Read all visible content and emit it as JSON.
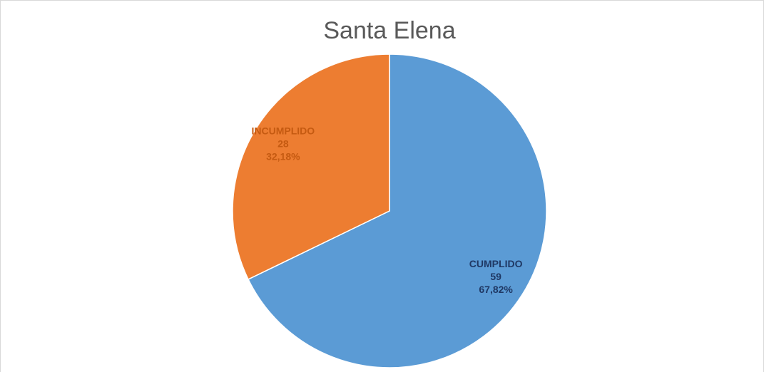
{
  "chart_data": {
    "type": "pie",
    "title": "Santa Elena",
    "categories": [
      "CUMPLIDO",
      "INCUMPLIDO"
    ],
    "values": [
      59,
      28
    ],
    "percent_labels": [
      "67,82%",
      "32,18%"
    ],
    "colors": [
      "#5b9bd5",
      "#ed7d31"
    ],
    "label_colors": [
      "#1f3864",
      "#c55a11"
    ]
  }
}
